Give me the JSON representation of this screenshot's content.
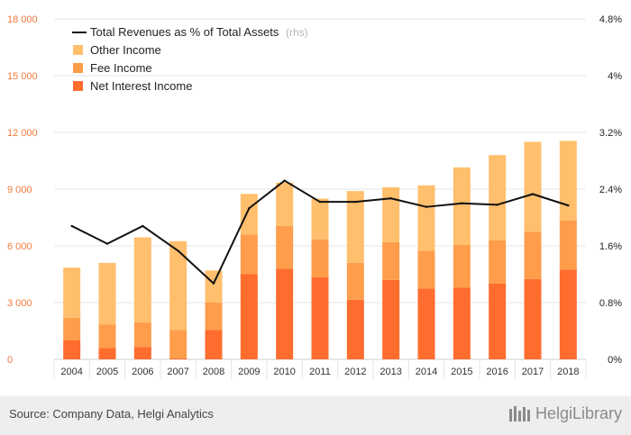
{
  "chart_data": {
    "type": "bar",
    "stacked": true,
    "categories": [
      "2004",
      "2005",
      "2006",
      "2007",
      "2008",
      "2009",
      "2010",
      "2011",
      "2012",
      "2013",
      "2014",
      "2015",
      "2016",
      "2017",
      "2018"
    ],
    "series": [
      {
        "name": "Net Interest Income",
        "color": "#ff6d2e",
        "values": [
          1000,
          600,
          650,
          50,
          1550,
          4500,
          4800,
          4350,
          3150,
          4200,
          3750,
          3800,
          4000,
          4250,
          4750
        ]
      },
      {
        "name": "Fee Income",
        "color": "#ff9d4b",
        "values": [
          1200,
          1250,
          1300,
          1500,
          1450,
          2100,
          2250,
          2000,
          1950,
          2000,
          2000,
          2250,
          2300,
          2500,
          2600
        ]
      },
      {
        "name": "Other Income",
        "color": "#ffbf6c",
        "values": [
          2650,
          3250,
          4500,
          4700,
          1700,
          2150,
          2300,
          2150,
          3800,
          2900,
          3450,
          4100,
          4500,
          4750,
          4200
        ]
      }
    ],
    "line_series": {
      "name": "Total Revenues as % of Total Assets",
      "axis": "right",
      "axis_note": "(rhs)",
      "color": "#111111",
      "values": [
        1.88,
        1.63,
        1.88,
        1.53,
        1.07,
        2.13,
        2.52,
        2.22,
        2.22,
        2.27,
        2.15,
        2.2,
        2.18,
        2.33,
        2.17
      ]
    },
    "y_left": {
      "ylim": [
        0,
        18000
      ],
      "ticks": [
        "0",
        "3 000",
        "6 000",
        "9 000",
        "12 000",
        "15 000",
        "18 000"
      ],
      "color": "#f47a3c"
    },
    "y_right": {
      "ylim": [
        0,
        4.8
      ],
      "ticks": [
        "0%",
        "0.8%",
        "1.6%",
        "2.4%",
        "3.2%",
        "4%",
        "4.8%"
      ],
      "color": "#222222"
    },
    "grid": true,
    "legend_placement": "top-left"
  },
  "footer": {
    "source": "Source: Company Data, Helgi Analytics",
    "brand": "HelgiLibrary"
  }
}
